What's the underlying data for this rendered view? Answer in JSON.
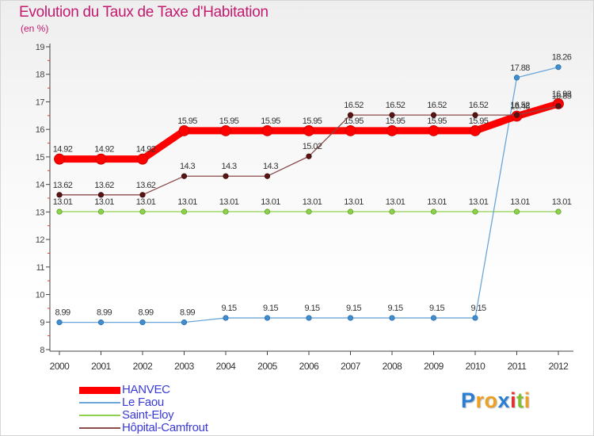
{
  "title": "Evolution du Taux de Taxe d'Habitation",
  "unit_label": "(en %)",
  "chart_data": {
    "type": "line",
    "title": "Evolution du Taux de Taxe d'Habitation",
    "ylabel": "(en %)",
    "x": [
      "2000",
      "2001",
      "2002",
      "2003",
      "2004",
      "2005",
      "2006",
      "2007",
      "2008",
      "2009",
      "2010",
      "2011",
      "2012"
    ],
    "y_ticks": [
      "8",
      "9",
      "10",
      "11",
      "12",
      "13",
      "14",
      "15",
      "16",
      "17",
      "18",
      "19"
    ],
    "ylim": [
      8,
      19
    ],
    "grid": false,
    "legend_position": "bottom-left",
    "series": [
      {
        "name": "HANVEC",
        "color": "#ff0000",
        "values": [
          14.92,
          14.92,
          14.92,
          15.95,
          15.95,
          15.95,
          15.95,
          15.95,
          15.95,
          15.95,
          15.95,
          16.48,
          16.93
        ],
        "labels": [
          "14.92",
          "14.92",
          "14.92",
          "15.95",
          "15.95",
          "15.95",
          "15.95",
          "15.95",
          "15.95",
          "15.95",
          "15.95",
          "16.48",
          "16.93"
        ]
      },
      {
        "name": "Le Faou",
        "color": "#6aa6d8",
        "values": [
          8.99,
          8.99,
          8.99,
          8.99,
          9.15,
          9.15,
          9.15,
          9.15,
          9.15,
          9.15,
          9.15,
          17.88,
          18.26
        ],
        "labels": [
          "8.99",
          "8.99",
          "8.99",
          "8.99",
          "9.15",
          "9.15",
          "9.15",
          "9.15",
          "9.15",
          "9.15",
          "9.15",
          "17.88",
          "18.26"
        ]
      },
      {
        "name": "Saint-Eloy",
        "color": "#8fd14f",
        "values": [
          13.01,
          13.01,
          13.01,
          13.01,
          13.01,
          13.01,
          13.01,
          13.01,
          13.01,
          13.01,
          13.01,
          13.01,
          13.01
        ],
        "labels": [
          "13.01",
          "13.01",
          "13.01",
          "13.01",
          "13.01",
          "13.01",
          "13.01",
          "13.01",
          "13.01",
          "13.01",
          "13.01",
          "13.01",
          "13.01"
        ]
      },
      {
        "name": "Hôpital-Camfrout",
        "color": "#8b4a4a",
        "values": [
          13.62,
          13.62,
          13.62,
          14.3,
          14.3,
          14.3,
          15.02,
          16.52,
          16.52,
          16.52,
          16.52,
          16.52,
          16.85
        ],
        "labels": [
          "13.62",
          "13.62",
          "13.62",
          "14.3",
          "14.3",
          "14.3",
          "15.02",
          "16.52",
          "16.52",
          "16.52",
          "16.52",
          "16.52",
          "16.85"
        ]
      }
    ]
  },
  "logo": {
    "letters": [
      "P",
      "r",
      "o",
      "x",
      "i",
      "t",
      "i"
    ],
    "colors": [
      "#2a7fd4",
      "#f0a020",
      "#f0a020",
      "#2a7fd4",
      "#e03030",
      "#80c030",
      "#f0a020"
    ]
  }
}
